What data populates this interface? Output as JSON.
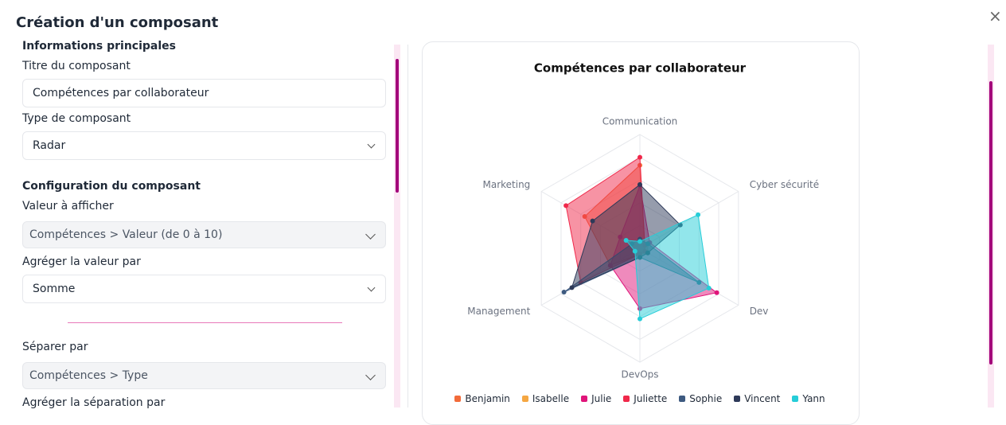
{
  "dialog": {
    "title": "Création d'un composant",
    "close": "×"
  },
  "form": {
    "section_main": "Informations principales",
    "title_label": "Titre du composant",
    "title_value": "Compétences par collaborateur",
    "type_label": "Type de composant",
    "type_value": "Radar",
    "section_config": "Configuration du composant",
    "value_label": "Valeur à afficher",
    "value_value": "Compétences > Valeur (de 0 à 10)",
    "aggregate_label": "Agréger la valeur par",
    "aggregate_value": "Somme",
    "split_label": "Séparer par",
    "split_value": "Compétences > Type",
    "split_aggregate_label": "Agréger la séparation par"
  },
  "chart_data": {
    "type": "radar",
    "title": "Compétences par collaborateur",
    "categories": [
      "Communication",
      "Cyber sécurité",
      "Dev",
      "DevOps",
      "Management",
      "Marketing"
    ],
    "rlim": [
      0,
      10
    ],
    "series": [
      {
        "name": "Benjamin",
        "color": "#f26b3a",
        "values": [
          7.3,
          0.5,
          0.5,
          0.5,
          3,
          5.6
        ]
      },
      {
        "name": "Isabelle",
        "color": "#f5a742",
        "values": [
          0.5,
          0.8,
          0.8,
          0.5,
          0.5,
          0.5
        ]
      },
      {
        "name": "Julie",
        "color": "#e0157a",
        "values": [
          5.5,
          1,
          7.8,
          5.3,
          3,
          2
        ]
      },
      {
        "name": "Juliette",
        "color": "#f0284a",
        "values": [
          8,
          0.5,
          0.5,
          0.5,
          6,
          7.5
        ]
      },
      {
        "name": "Sophie",
        "color": "#3d5a80",
        "values": [
          0.8,
          0.8,
          6,
          0.8,
          7.7,
          0.8
        ]
      },
      {
        "name": "Vincent",
        "color": "#2e3a59",
        "values": [
          5.6,
          4.1,
          0.8,
          0.8,
          6.9,
          4.8
        ]
      },
      {
        "name": "Yann",
        "color": "#26cdd8",
        "values": [
          0.6,
          5.9,
          7,
          6.2,
          0.5,
          1.4
        ]
      }
    ]
  }
}
